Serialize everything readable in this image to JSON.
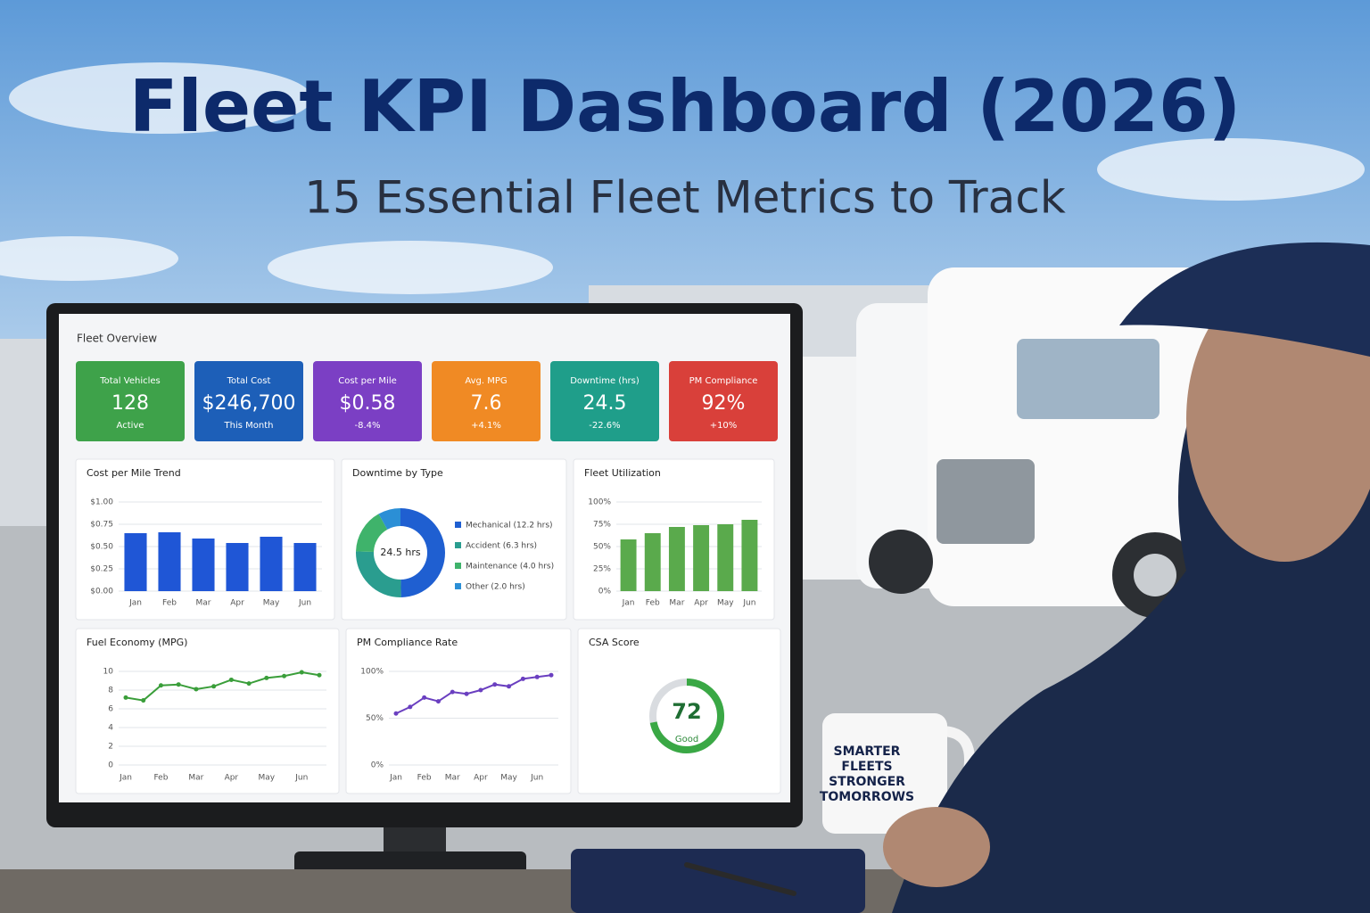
{
  "header": {
    "title": "Fleet KPI Dashboard (2026)",
    "subtitle": "15 Essential Fleet Metrics to Track"
  },
  "mug": {
    "lines": [
      "SMARTER",
      "FLEETS",
      "STRONGER",
      "TOMORROWS"
    ]
  },
  "dashboard": {
    "title": "Fleet Overview",
    "kpis": [
      {
        "label": "Total Vehicles",
        "value": "128",
        "note": "Active",
        "color": "#3ea24a"
      },
      {
        "label": "Total Cost",
        "value": "$246,700",
        "note": "This Month",
        "color": "#1d5fb8"
      },
      {
        "label": "Cost per Mile",
        "value": "$0.58",
        "note": "-8.4%",
        "color": "#7b3fc4"
      },
      {
        "label": "Avg. MPG",
        "value": "7.6",
        "note": "+4.1%",
        "color": "#f08a24"
      },
      {
        "label": "Downtime (hrs)",
        "value": "24.5",
        "note": "-22.6%",
        "color": "#1f9e8a"
      },
      {
        "label": "PM Compliance",
        "value": "92%",
        "note": "+10%",
        "color": "#d9403a"
      }
    ]
  },
  "chart_data": [
    {
      "type": "bar",
      "title": "Cost per Mile Trend",
      "categories": [
        "Jan",
        "Feb",
        "Mar",
        "Apr",
        "May",
        "Jun"
      ],
      "values": [
        0.65,
        0.66,
        0.59,
        0.54,
        0.61,
        0.54
      ],
      "color": "#1f56d6",
      "ylim": [
        0,
        1
      ],
      "yticks": [
        {
          "value": 0,
          "label": "$0.00"
        },
        {
          "value": 0.25,
          "label": "$0.25"
        },
        {
          "value": 0.5,
          "label": "$0.50"
        },
        {
          "value": 0.75,
          "label": "$0.75"
        },
        {
          "value": 1,
          "label": "$1.00"
        }
      ],
      "grid": true
    },
    {
      "type": "donut",
      "title": "Downtime by Type",
      "categories": [
        "Mechanical (12.2 hrs)",
        "Accident (6.3 hrs)",
        "Maintenance (4.0 hrs)",
        "Other (2.0 hrs)"
      ],
      "values": [
        12.2,
        6.3,
        4.0,
        2.0
      ],
      "colors": [
        "#1f5fd1",
        "#2a9d8f",
        "#3fb36b",
        "#2b8fd6"
      ],
      "center_label": "24.5 hrs"
    },
    {
      "type": "bar",
      "title": "Fleet Utilization",
      "categories": [
        "Jan",
        "Feb",
        "Mar",
        "Apr",
        "May",
        "Jun"
      ],
      "values": [
        58,
        65,
        72,
        74,
        75,
        80
      ],
      "color": "#5aaa4c",
      "ylim": [
        0,
        100
      ],
      "yticks": [
        {
          "value": 0,
          "label": "0%"
        },
        {
          "value": 25,
          "label": "25%"
        },
        {
          "value": 50,
          "label": "50%"
        },
        {
          "value": 75,
          "label": "75%"
        },
        {
          "value": 100,
          "label": "100%"
        }
      ],
      "grid": true
    },
    {
      "type": "line",
      "title": "Fuel Economy (MPG)",
      "categories": [
        "Jan",
        null,
        "Feb",
        null,
        "Mar",
        null,
        "Apr",
        null,
        "May",
        null,
        "Jun",
        null
      ],
      "values": [
        7.2,
        6.9,
        8.5,
        8.6,
        8.1,
        8.4,
        9.1,
        8.7,
        9.3,
        9.5,
        9.9,
        9.6
      ],
      "color": "#3a9e3a",
      "markers": true,
      "ylim": [
        0,
        10
      ],
      "yticks": [
        0,
        2,
        4,
        6,
        8,
        10
      ],
      "grid": true
    },
    {
      "type": "line",
      "title": "PM Compliance Rate",
      "categories": [
        "Jan",
        null,
        "Feb",
        null,
        "Mar",
        null,
        "Apr",
        null,
        "May",
        null,
        "Jun",
        null
      ],
      "values": [
        55,
        62,
        72,
        68,
        78,
        76,
        80,
        86,
        84,
        92,
        94,
        96
      ],
      "color": "#6a3fc0",
      "markers": true,
      "ylim": [
        0,
        100
      ],
      "yticks": [
        {
          "value": 0,
          "label": "0%"
        },
        {
          "value": 50,
          "label": "50%"
        },
        {
          "value": 100,
          "label": "100%"
        }
      ],
      "grid": true
    },
    {
      "type": "gauge",
      "title": "CSA Score",
      "value": 72,
      "rating": "Good",
      "ylim": [
        0,
        100
      ],
      "color": "#3aa845"
    }
  ]
}
